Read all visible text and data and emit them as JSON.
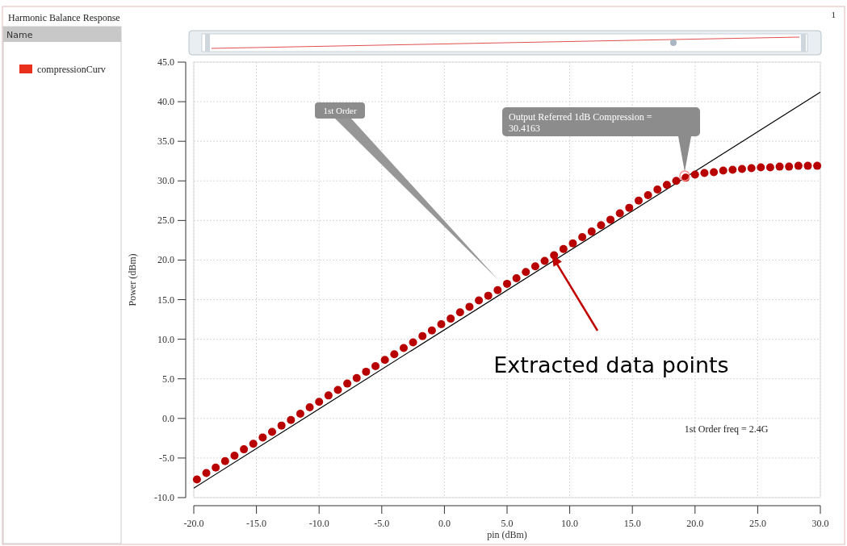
{
  "chart_data": {
    "type": "scatter",
    "title": "Harmonic Balance Response",
    "xlabel": "pin (dBm)",
    "ylabel": "Power (dBm)",
    "legend_title": "Name",
    "legend": "left",
    "grid": true,
    "marker": "circle",
    "xlim": [
      -20,
      30
    ],
    "xticks": [
      {
        "value": -20,
        "label": "-20.0"
      },
      {
        "value": -15,
        "label": "-15.0"
      },
      {
        "value": -10,
        "label": "-10.0"
      },
      {
        "value": -5,
        "label": "-5.0"
      },
      {
        "value": 0,
        "label": "0.0"
      },
      {
        "value": 5,
        "label": "5.0"
      },
      {
        "value": 10,
        "label": "10.0"
      },
      {
        "value": 15,
        "label": "15.0"
      },
      {
        "value": 20,
        "label": "20.0"
      },
      {
        "value": 25,
        "label": "25.0"
      },
      {
        "value": 30,
        "label": "30.0"
      }
    ],
    "ylim": [
      -10,
      45
    ],
    "yticks": [
      {
        "value": -10,
        "label": "-10.0"
      },
      {
        "value": -5,
        "label": "-5.0"
      },
      {
        "value": 0,
        "label": "0.0"
      },
      {
        "value": 5,
        "label": "5.0"
      },
      {
        "value": 10,
        "label": "10.0"
      },
      {
        "value": 15,
        "label": "15.0"
      },
      {
        "value": 20,
        "label": "20.0"
      },
      {
        "value": 25,
        "label": "25.0"
      },
      {
        "value": 30,
        "label": "30.0"
      },
      {
        "value": 35,
        "label": "35.0"
      },
      {
        "value": 40,
        "label": "40.0"
      },
      {
        "value": 45,
        "label": "45.0"
      }
    ],
    "series": [
      {
        "type": "line",
        "color": "#000000",
        "line_style": "solid",
        "marker": "none",
        "x": [
          -20,
          30
        ],
        "values": [
          -8.8,
          41.2
        ]
      },
      {
        "name": "compressionCurv",
        "color": "#b80000",
        "x": [
          -19.75,
          -19,
          -18.25,
          -17.5,
          -16.75,
          -16,
          -15.25,
          -14.5,
          -13.75,
          -13,
          -12.25,
          -11.5,
          -10.75,
          -10,
          -9.25,
          -8.5,
          -7.75,
          -7,
          -6.25,
          -5.5,
          -4.75,
          -4,
          -3.25,
          -2.5,
          -1.75,
          -1,
          -0.25,
          0.5,
          1.25,
          2,
          2.75,
          3.5,
          4.25,
          5,
          5.75,
          6.5,
          7.25,
          8,
          8.75,
          9.5,
          10.25,
          11,
          11.75,
          12.5,
          13.25,
          14,
          14.75,
          15.5,
          16.25,
          17,
          17.75,
          18.5,
          19.25,
          20,
          20.75,
          21.5,
          22.25,
          23,
          23.75,
          24.5,
          25.25,
          26,
          26.75,
          27.5,
          28.25,
          29,
          29.75
        ],
        "values": [
          -7.7,
          -6.9,
          -6.2,
          -5.4,
          -4.7,
          -3.9,
          -3.2,
          -2.4,
          -1.7,
          -0.9,
          -0.2,
          0.6,
          1.4,
          2.1,
          2.9,
          3.6,
          4.4,
          5.1,
          5.9,
          6.6,
          7.4,
          8.1,
          8.9,
          9.6,
          10.4,
          11.1,
          11.9,
          12.6,
          13.4,
          14.1,
          14.9,
          15.5,
          16.2,
          17,
          17.7,
          18.5,
          19.2,
          19.9,
          20.6,
          21.4,
          22.1,
          22.9,
          23.6,
          24.4,
          25.1,
          25.9,
          26.6,
          27.5,
          28.2,
          28.9,
          29.5,
          30,
          30.4,
          30.8,
          31.0,
          31.1,
          31.3,
          31.4,
          31.5,
          31.6,
          31.7,
          31.7,
          31.8,
          31.8,
          31.9,
          31.9,
          31.9
        ]
      }
    ],
    "annotations": [
      "1st Order",
      "Output Referred 1dB Compression = 30.4163",
      "1st Order freq = 2.4G",
      {
        "text": "Extracted data points",
        "x": 8.7,
        "y": 20.5
      },
      "1"
    ]
  }
}
